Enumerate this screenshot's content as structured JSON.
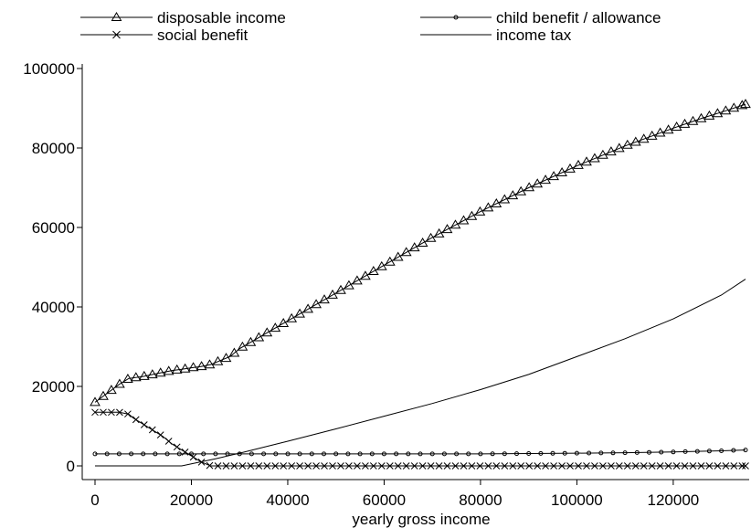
{
  "chart_data": {
    "type": "line",
    "title": "",
    "xlabel": "yearly gross income",
    "ylabel": "",
    "xlim": [
      0,
      135000
    ],
    "ylim": [
      0,
      100000
    ],
    "xticks": [
      0,
      20000,
      40000,
      60000,
      80000,
      100000,
      120000
    ],
    "xtick_labels": [
      "0",
      "20000",
      "40000",
      "60000",
      "80000",
      "100000",
      "120000"
    ],
    "yticks": [
      0,
      20000,
      40000,
      60000,
      80000,
      100000
    ],
    "ytick_labels": [
      "0",
      "20000",
      "40000",
      "60000",
      "80000",
      "100000"
    ],
    "grid": false,
    "legend_position": "top",
    "series": [
      {
        "name": "disposable income",
        "marker": "triangle",
        "x": [
          0,
          5000,
          7000,
          10000,
          12000,
          14000,
          16000,
          18000,
          20000,
          22000,
          24000,
          26000,
          28000,
          30000,
          35000,
          40000,
          50000,
          60000,
          70000,
          80000,
          90000,
          100000,
          110000,
          120000,
          126000,
          130000,
          135000
        ],
        "y": [
          16000,
          20500,
          22000,
          22500,
          23000,
          23500,
          24000,
          24300,
          24700,
          25000,
          25500,
          26500,
          27500,
          29500,
          33000,
          36500,
          43500,
          50500,
          57500,
          64000,
          70000,
          75500,
          80500,
          85000,
          87500,
          89000,
          91000
        ]
      },
      {
        "name": "child benefit / allowance",
        "marker": "circle",
        "x": [
          0,
          10000,
          20000,
          30000,
          40000,
          50000,
          60000,
          70000,
          80000,
          90000,
          100000,
          110000,
          120000,
          130000,
          135000
        ],
        "y": [
          3000,
          3000,
          3000,
          3000,
          3000,
          3000,
          3000,
          3000,
          3000,
          3100,
          3200,
          3300,
          3500,
          3800,
          4000
        ]
      },
      {
        "name": "social benefit",
        "marker": "x",
        "x": [
          0,
          5000,
          7000,
          8000,
          10000,
          12000,
          14000,
          16000,
          18000,
          20000,
          22000,
          24000,
          26000,
          30000,
          40000,
          50000,
          60000,
          70000,
          80000,
          90000,
          100000,
          110000,
          120000,
          130000,
          135000
        ],
        "y": [
          13500,
          13500,
          13000,
          12000,
          10500,
          9000,
          7500,
          5500,
          4000,
          2500,
          1000,
          0,
          0,
          0,
          0,
          0,
          0,
          0,
          0,
          0,
          0,
          0,
          0,
          0,
          0
        ]
      },
      {
        "name": "income tax",
        "marker": "none",
        "x": [
          0,
          10000,
          18000,
          20000,
          25000,
          30000,
          40000,
          50000,
          60000,
          70000,
          80000,
          90000,
          100000,
          110000,
          120000,
          130000,
          135000
        ],
        "y": [
          0,
          0,
          0,
          500,
          1800,
          3200,
          6200,
          9300,
          12500,
          15700,
          19200,
          23000,
          27500,
          32000,
          37000,
          43000,
          47000
        ]
      }
    ]
  }
}
